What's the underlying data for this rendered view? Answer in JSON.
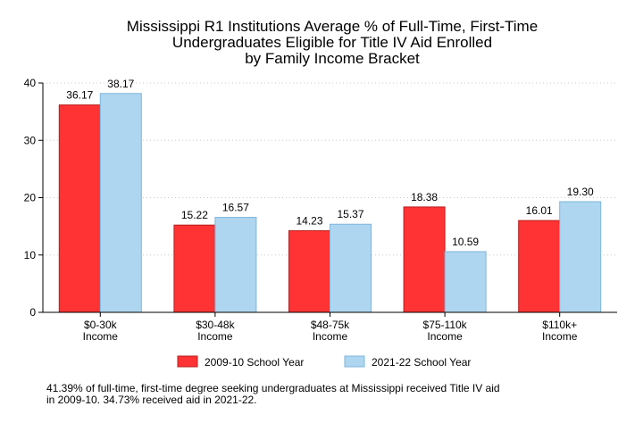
{
  "chart_data": {
    "type": "bar",
    "title": "Mississippi R1 Institutions Average % of Full-Time, First-Time Undergraduates Eligible for Title IV Aid Enrolled by Family Income Bracket",
    "title_lines": [
      "Mississippi R1 Institutions Average % of Full-Time, First-Time",
      "Undergraduates Eligible for Title IV Aid Enrolled",
      "by Family Income Bracket"
    ],
    "categories": [
      "$0-30k Income",
      "$30-48k Income",
      "$48-75k Income",
      "$75-110k Income",
      "$110k+ Income"
    ],
    "category_lines": [
      [
        "$0-30k",
        "Income"
      ],
      [
        "$30-48k",
        "Income"
      ],
      [
        "$48-75k",
        "Income"
      ],
      [
        "$75-110k",
        "Income"
      ],
      [
        "$110k+",
        "Income"
      ]
    ],
    "series": [
      {
        "name": "2009-10 School Year",
        "values": [
          36.17,
          15.22,
          14.23,
          18.38,
          16.01
        ],
        "labels": [
          "36.17",
          "15.22",
          "14.23",
          "18.38",
          "16.01"
        ],
        "color": "#ff3333",
        "stroke": "#b81c1c"
      },
      {
        "name": "2021-22 School Year",
        "values": [
          38.17,
          16.57,
          15.37,
          10.59,
          19.3
        ],
        "labels": [
          "38.17",
          "16.57",
          "15.37",
          "10.59",
          "19.30"
        ],
        "color": "#aed6f1",
        "stroke": "#7fb5da"
      }
    ],
    "ylim": [
      0,
      40
    ],
    "yticks": [
      "0",
      "10",
      "20",
      "30",
      "40"
    ],
    "xlabel": "",
    "ylabel": "",
    "grid": "horizontal dotted",
    "legend_position": "bottom"
  },
  "note": {
    "line1": "41.39% of full-time, first-time degree seeking undergraduates at Mississippi received Title IV aid",
    "line2": "in 2009-10. 34.73% received aid in 2021-22."
  }
}
